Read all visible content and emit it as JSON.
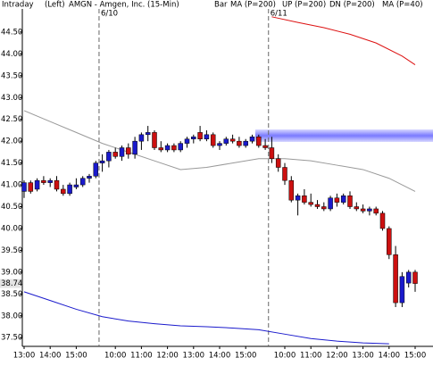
{
  "chart_data": {
    "type": "candlestick",
    "header": {
      "mode": "Intraday",
      "side": "(Left)",
      "title": "AMGN - Amgen, Inc. (15-Min)",
      "style": "Bar"
    },
    "categories": [
      "13:00",
      null,
      null,
      null,
      "14:00",
      null,
      null,
      null,
      "15:00",
      null,
      null,
      null,
      null,
      null,
      "10:00",
      null,
      null,
      null,
      "11:00",
      null,
      null,
      null,
      "12:00",
      null,
      null,
      null,
      "13:00",
      null,
      null,
      null,
      "14:00",
      null,
      null,
      null,
      "15:00",
      null,
      null,
      null,
      null,
      null,
      "10:00",
      null,
      null,
      null,
      "11:00",
      null,
      null,
      null,
      "12:00",
      null,
      null,
      null,
      "13:00",
      null,
      null,
      null,
      "14:00",
      null,
      null,
      null,
      "15:00"
    ],
    "day_labels": [
      null,
      null,
      null,
      null,
      null,
      null,
      null,
      null,
      null,
      null,
      null,
      null,
      "6/10",
      null,
      null,
      null,
      null,
      null,
      null,
      null,
      null,
      null,
      null,
      null,
      null,
      null,
      null,
      null,
      null,
      null,
      null,
      null,
      null,
      null,
      null,
      null,
      null,
      null,
      "6/11",
      null,
      null,
      null,
      null,
      null,
      null,
      null,
      null,
      null,
      null,
      null,
      null,
      null,
      null,
      null,
      null,
      null,
      null,
      null,
      null,
      null,
      null
    ],
    "up_color": "#1a1acc",
    "down_color": "#cc1010",
    "open": [
      40.85,
      41.05,
      40.9,
      41.1,
      41.05,
      41.1,
      40.9,
      40.8,
      40.95,
      41.0,
      41.15,
      41.2,
      41.5,
      41.55,
      41.75,
      41.65,
      41.85,
      41.7,
      42.0,
      42.15,
      42.2,
      41.85,
      41.8,
      41.9,
      41.8,
      41.95,
      42.05,
      42.2,
      42.05,
      42.15,
      41.9,
      41.95,
      42.05,
      42.0,
      41.9,
      42.0,
      42.1,
      41.9,
      41.85,
      41.6,
      41.4,
      41.1,
      40.65,
      40.75,
      40.6,
      40.55,
      40.5,
      40.45,
      40.7,
      40.6,
      40.75,
      40.5,
      40.45,
      40.4,
      40.45,
      40.35,
      40.0,
      39.4,
      38.3,
      38.75,
      39.0
    ],
    "high": [
      41.1,
      41.1,
      41.15,
      41.2,
      41.15,
      41.2,
      41.0,
      41.05,
      41.15,
      41.2,
      41.25,
      41.55,
      41.7,
      41.8,
      41.85,
      41.9,
      41.95,
      42.1,
      42.2,
      42.35,
      42.25,
      42.0,
      41.95,
      41.95,
      42.0,
      42.1,
      42.15,
      42.35,
      42.25,
      42.2,
      42.0,
      42.1,
      42.15,
      42.1,
      42.05,
      42.15,
      42.15,
      42.05,
      42.1,
      41.7,
      41.5,
      41.2,
      40.8,
      40.9,
      40.8,
      40.65,
      40.6,
      40.75,
      40.8,
      40.8,
      40.85,
      40.6,
      40.55,
      40.5,
      40.5,
      40.4,
      40.05,
      39.6,
      39.0,
      39.05,
      39.05
    ],
    "low": [
      40.7,
      40.8,
      40.85,
      41.0,
      40.95,
      40.85,
      40.75,
      40.75,
      40.9,
      40.95,
      41.05,
      41.15,
      41.3,
      41.4,
      41.6,
      41.55,
      41.6,
      41.6,
      41.8,
      42.0,
      41.8,
      41.75,
      41.75,
      41.75,
      41.75,
      41.85,
      41.95,
      42.0,
      42.0,
      41.85,
      41.8,
      41.9,
      41.95,
      41.85,
      41.85,
      41.95,
      41.85,
      41.8,
      41.5,
      41.3,
      41.0,
      40.6,
      40.3,
      40.55,
      40.5,
      40.45,
      40.4,
      40.4,
      40.5,
      40.55,
      40.45,
      40.4,
      40.35,
      40.3,
      40.3,
      39.95,
      39.3,
      38.2,
      38.2,
      38.65,
      38.55
    ],
    "close": [
      41.05,
      40.85,
      41.1,
      41.05,
      41.1,
      40.9,
      40.8,
      41.0,
      41.0,
      41.15,
      41.2,
      41.5,
      41.55,
      41.75,
      41.65,
      41.85,
      41.7,
      42.0,
      42.15,
      42.2,
      41.85,
      41.8,
      41.9,
      41.8,
      41.95,
      42.05,
      42.1,
      42.05,
      42.15,
      41.9,
      41.95,
      42.05,
      42.0,
      41.9,
      42.0,
      42.1,
      41.9,
      41.85,
      41.6,
      41.4,
      41.1,
      40.65,
      40.75,
      40.6,
      40.55,
      40.5,
      40.45,
      40.7,
      40.6,
      40.75,
      40.5,
      40.45,
      40.4,
      40.45,
      40.35,
      40.0,
      39.4,
      38.3,
      38.9,
      39.0,
      38.74
    ],
    "last_price": 38.74,
    "lines": [
      {
        "name": "MA (P=200)",
        "color": "#dd1111",
        "x": [
          38,
          42,
          46,
          50,
          54,
          58,
          60
        ],
        "values": [
          44.85,
          44.72,
          44.6,
          44.45,
          44.25,
          43.95,
          43.75
        ]
      },
      {
        "name": "UP (P=200)",
        "color": "#11aa11"
      },
      {
        "name": "DN (P=200)",
        "color": "#1a1acc",
        "x": [
          0,
          4,
          8,
          12,
          16,
          20,
          24,
          28,
          32,
          36,
          40,
          44,
          48,
          52,
          56
        ],
        "values": [
          38.55,
          38.35,
          38.15,
          37.98,
          37.88,
          37.82,
          37.77,
          37.75,
          37.72,
          37.68,
          37.58,
          37.48,
          37.42,
          37.38,
          37.36
        ]
      },
      {
        "name": "MA (P=40)",
        "color": "#999999",
        "x": [
          0,
          4,
          8,
          12,
          16,
          20,
          24,
          28,
          32,
          36,
          40,
          44,
          48,
          52,
          56,
          60
        ],
        "values": [
          42.7,
          42.45,
          42.2,
          41.95,
          41.75,
          41.55,
          41.35,
          41.4,
          41.5,
          41.6,
          41.6,
          41.55,
          41.45,
          41.35,
          41.15,
          40.85
        ]
      }
    ],
    "ylim": [
      37.3,
      45.03
    ],
    "yticks": [
      {
        "value": 37.5,
        "label": "37.50"
      },
      {
        "value": 38,
        "label": "38.00"
      },
      {
        "value": 38.5,
        "label": "38.50"
      },
      {
        "value": 39,
        "label": "39.00"
      },
      {
        "value": 39.5,
        "label": "39.50"
      },
      {
        "value": 40,
        "label": "40.00"
      },
      {
        "value": 40.5,
        "label": "40.50"
      },
      {
        "value": 41,
        "label": "41.00"
      },
      {
        "value": 41.5,
        "label": "41.50"
      },
      {
        "value": 42,
        "label": "42.00"
      },
      {
        "value": 42.5,
        "label": "42.50"
      },
      {
        "value": 43,
        "label": "43.00"
      },
      {
        "value": 43.5,
        "label": "43.50"
      },
      {
        "value": 44,
        "label": "44.00"
      },
      {
        "value": 44.5,
        "label": "44.50"
      }
    ]
  }
}
